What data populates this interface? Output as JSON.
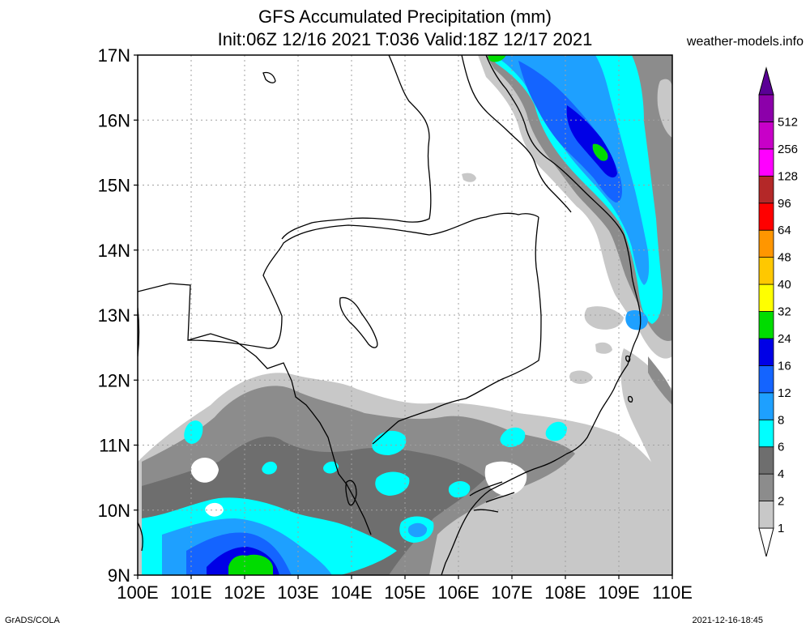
{
  "header": {
    "title_line1": "GFS Accumulated Precipitation (mm)",
    "title_line2": "Init:06Z 12/16 2021 T:036 Valid:18Z 12/17 2021",
    "credit": "weather-models.info"
  },
  "footer": {
    "left": "GrADS/COLA",
    "right": "2021-12-16-18:45"
  },
  "chart_data": {
    "type": "heatmap",
    "title": "GFS Accumulated Precipitation (mm)",
    "subtitle": "Init:06Z 12/16 2021 T:036 Valid:18Z 12/17 2021",
    "lon_range": [
      100,
      110
    ],
    "lat_range": [
      9,
      17
    ],
    "x_ticks": [
      "100E",
      "101E",
      "102E",
      "103E",
      "104E",
      "105E",
      "106E",
      "107E",
      "108E",
      "109E",
      "110E"
    ],
    "y_ticks": [
      "9N",
      "10N",
      "11N",
      "12N",
      "13N",
      "14N",
      "15N",
      "16N",
      "17N"
    ],
    "grid": true,
    "legend": {
      "placement": "right",
      "levels": [
        {
          "label": "1",
          "color": "#c8c8c8"
        },
        {
          "label": "2",
          "color": "#8c8c8c"
        },
        {
          "label": "4",
          "color": "#6e6e6e"
        },
        {
          "label": "6",
          "color": "#00ffff"
        },
        {
          "label": "8",
          "color": "#1ea0ff"
        },
        {
          "label": "12",
          "color": "#1464ff"
        },
        {
          "label": "16",
          "color": "#0000e6"
        },
        {
          "label": "24",
          "color": "#00dc00"
        },
        {
          "label": "32",
          "color": "#ffff00"
        },
        {
          "label": "40",
          "color": "#ffc800"
        },
        {
          "label": "48",
          "color": "#ff9600"
        },
        {
          "label": "64",
          "color": "#ff0000"
        },
        {
          "label": "96",
          "color": "#b42828"
        },
        {
          "label": "128",
          "color": "#ff00ff"
        },
        {
          "label": "256",
          "color": "#c800c8"
        },
        {
          "label": "512",
          "color": "#8c00aa"
        }
      ],
      "top_arrow_color": "#5a0096",
      "bottom_arrow_color": "#ffffff"
    }
  }
}
